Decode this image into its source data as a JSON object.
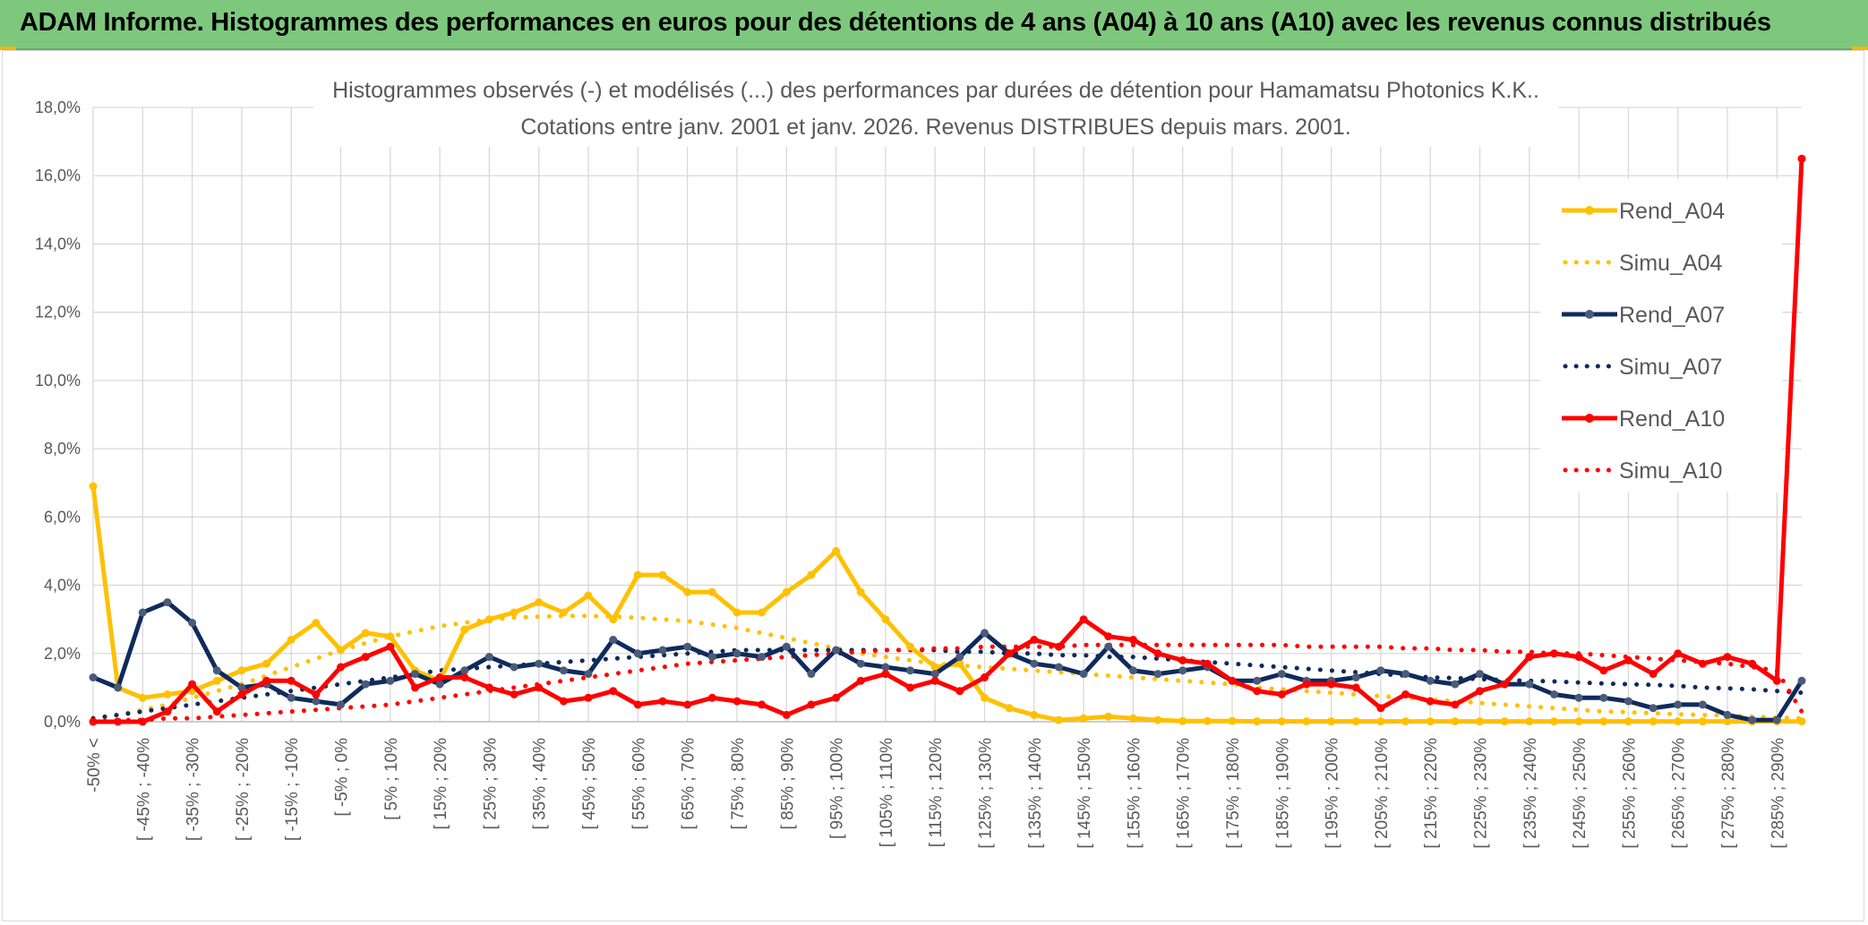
{
  "banner": {
    "title": "ADAM Informe. Histogrammes des performances en euros pour des détentions de 4 ans (A04) à 10 ans (A10) avec les revenus connus distribués"
  },
  "colors": {
    "banner_bg": "#7dc87d",
    "a04": "#ffc000",
    "a07": "#0f2a5c",
    "a07_marker": "#4a5a78",
    "a10": "#ff0000",
    "grid": "#d9d9d9",
    "text": "#595959"
  },
  "chart_data": {
    "type": "line",
    "title_line1": "Histogrammes observés (-) et modélisés (...) des performances par durées de détention pour Hamamatsu Photonics K.K..",
    "title_line2": "Cotations entre janv. 2001 et janv. 2026. Revenus DISTRIBUES depuis mars. 2001.",
    "y_ticks": [
      "0,0%",
      "2,0%",
      "4,0%",
      "6,0%",
      "8,0%",
      "10,0%",
      "12,0%",
      "14,0%",
      "16,0%",
      "18,0%"
    ],
    "ylim": [
      0,
      18
    ],
    "grid": true,
    "legend_position": "right",
    "x_tick_labels": [
      "-50% <",
      "[ -45% ; -40%",
      "[ -35% ; -30%",
      "[ -25% ; -20%",
      "[ -15% ; -10%",
      "[ -5% ; 0%",
      "[ 5% ; 10%",
      "[ 15% ; 20%",
      "[ 25% ; 30%",
      "[ 35% ; 40%",
      "[ 45% ; 50%",
      "[ 55% ; 60%",
      "[ 65% ; 70%",
      "[ 75% ; 80%",
      "[ 85% ; 90%",
      "[ 95% ; 100%",
      "[ 105% ; 110%",
      "[ 115% ; 120%",
      "[ 125% ; 130%",
      "[ 135% ; 140%",
      "[ 145% ; 150%",
      "[ 155% ; 160%",
      "[ 165% ; 170%",
      "[ 175% ; 180%",
      "[ 185% ; 190%",
      "[ 195% ; 200%",
      "[ 205% ; 210%",
      "[ 215% ; 220%",
      "[ 225% ; 230%",
      "[ 235% ; 240%",
      "[ 245% ; 250%",
      "[ 255% ; 260%",
      "[ 265% ; 270%",
      "[ 275% ; 280%",
      "[ 285% ; 290%"
    ],
    "categories_count": 70,
    "series": [
      {
        "name": "Rend_A04",
        "style": "solid",
        "color": "#ffc000",
        "values": [
          6.9,
          1.0,
          0.7,
          0.8,
          0.9,
          1.2,
          1.5,
          1.7,
          2.4,
          2.9,
          2.1,
          2.6,
          2.5,
          1.5,
          1.2,
          2.7,
          3.0,
          3.2,
          3.5,
          3.2,
          3.7,
          3.0,
          4.3,
          4.3,
          3.8,
          3.8,
          3.2,
          3.2,
          3.8,
          4.3,
          5.0,
          3.8,
          3.0,
          2.2,
          1.6,
          1.7,
          0.7,
          0.4,
          0.2,
          0.05,
          0.1,
          0.15,
          0.1,
          0.05,
          0.02,
          0.02,
          0.02,
          0.01,
          0.01,
          0.01,
          0.01,
          0.01,
          0.01,
          0.01,
          0.01,
          0.01,
          0.01,
          0.01,
          0.01,
          0.01,
          0.01,
          0.01,
          0.01,
          0.01,
          0.01,
          0.01,
          0.01,
          0.01,
          0.01,
          0.01
        ]
      },
      {
        "name": "Simu_A04",
        "style": "dotted",
        "color": "#ffc000",
        "values": [
          0.1,
          0.2,
          0.35,
          0.5,
          0.7,
          0.9,
          1.1,
          1.35,
          1.6,
          1.85,
          2.1,
          2.3,
          2.5,
          2.65,
          2.8,
          2.9,
          3.0,
          3.05,
          3.08,
          3.1,
          3.1,
          3.08,
          3.05,
          3.0,
          2.95,
          2.85,
          2.75,
          2.6,
          2.45,
          2.3,
          2.15,
          2.0,
          1.9,
          1.8,
          1.7,
          1.65,
          1.6,
          1.55,
          1.5,
          1.45,
          1.4,
          1.35,
          1.3,
          1.25,
          1.2,
          1.15,
          1.1,
          1.0,
          0.95,
          0.9,
          0.85,
          0.8,
          0.75,
          0.7,
          0.65,
          0.6,
          0.55,
          0.5,
          0.45,
          0.4,
          0.35,
          0.3,
          0.28,
          0.25,
          0.22,
          0.2,
          0.18,
          0.15,
          0.12,
          0.1
        ]
      },
      {
        "name": "Rend_A07",
        "style": "solid",
        "color": "#0f2a5c",
        "values": [
          1.3,
          1.0,
          3.2,
          3.5,
          2.9,
          1.5,
          1.0,
          1.1,
          0.7,
          0.6,
          0.5,
          1.1,
          1.2,
          1.4,
          1.1,
          1.5,
          1.9,
          1.6,
          1.7,
          1.5,
          1.4,
          2.4,
          2.0,
          2.1,
          2.2,
          1.9,
          2.0,
          1.9,
          2.2,
          1.4,
          2.1,
          1.7,
          1.6,
          1.5,
          1.4,
          1.9,
          2.6,
          2.0,
          1.7,
          1.6,
          1.4,
          2.2,
          1.5,
          1.4,
          1.5,
          1.6,
          1.2,
          1.2,
          1.4,
          1.2,
          1.2,
          1.3,
          1.5,
          1.4,
          1.2,
          1.1,
          1.4,
          1.1,
          1.1,
          0.8,
          0.7,
          0.7,
          0.6,
          0.4,
          0.5,
          0.5,
          0.2,
          0.05,
          0.05,
          1.2
        ]
      },
      {
        "name": "Simu_A07",
        "style": "dotted",
        "color": "#0f2a5c",
        "values": [
          0.1,
          0.2,
          0.3,
          0.4,
          0.5,
          0.6,
          0.7,
          0.8,
          0.9,
          1.0,
          1.1,
          1.2,
          1.3,
          1.4,
          1.5,
          1.55,
          1.6,
          1.65,
          1.7,
          1.75,
          1.8,
          1.85,
          1.9,
          1.95,
          2.0,
          2.05,
          2.1,
          2.1,
          2.1,
          2.1,
          2.1,
          2.1,
          2.1,
          2.1,
          2.1,
          2.05,
          2.05,
          2.0,
          2.0,
          1.95,
          1.95,
          1.9,
          1.9,
          1.85,
          1.8,
          1.75,
          1.7,
          1.65,
          1.6,
          1.55,
          1.5,
          1.45,
          1.4,
          1.35,
          1.3,
          1.28,
          1.25,
          1.22,
          1.2,
          1.18,
          1.15,
          1.12,
          1.1,
          1.08,
          1.05,
          1.0,
          0.98,
          0.95,
          0.9,
          0.85
        ]
      },
      {
        "name": "Rend_A10",
        "style": "solid",
        "color": "#ff0000",
        "values": [
          0.0,
          0.0,
          0.0,
          0.3,
          1.1,
          0.3,
          0.8,
          1.2,
          1.2,
          0.8,
          1.6,
          1.9,
          2.2,
          1.0,
          1.3,
          1.3,
          1.0,
          0.8,
          1.0,
          0.6,
          0.7,
          0.9,
          0.5,
          0.6,
          0.5,
          0.7,
          0.6,
          0.5,
          0.2,
          0.5,
          0.7,
          1.2,
          1.4,
          1.0,
          1.2,
          0.9,
          1.3,
          2.0,
          2.4,
          2.2,
          3.0,
          2.5,
          2.4,
          2.0,
          1.8,
          1.7,
          1.2,
          0.9,
          0.8,
          1.1,
          1.1,
          1.0,
          0.4,
          0.8,
          0.6,
          0.5,
          0.9,
          1.1,
          1.9,
          2.0,
          1.9,
          1.5,
          1.8,
          1.4,
          2.0,
          1.7,
          1.9,
          1.7,
          1.2,
          16.5
        ]
      },
      {
        "name": "Simu_A10",
        "style": "dotted",
        "color": "#ff0000",
        "values": [
          0.0,
          0.05,
          0.05,
          0.1,
          0.1,
          0.15,
          0.2,
          0.25,
          0.3,
          0.35,
          0.4,
          0.45,
          0.5,
          0.6,
          0.7,
          0.8,
          0.9,
          1.0,
          1.1,
          1.2,
          1.3,
          1.4,
          1.5,
          1.6,
          1.7,
          1.75,
          1.8,
          1.85,
          1.9,
          1.95,
          2.0,
          2.05,
          2.1,
          2.1,
          2.15,
          2.15,
          2.2,
          2.2,
          2.2,
          2.2,
          2.25,
          2.25,
          2.25,
          2.25,
          2.25,
          2.25,
          2.25,
          2.25,
          2.25,
          2.2,
          2.2,
          2.2,
          2.2,
          2.15,
          2.15,
          2.1,
          2.1,
          2.05,
          2.05,
          2.0,
          2.0,
          1.95,
          1.9,
          1.85,
          1.8,
          1.75,
          1.7,
          1.6,
          1.5,
          0.3
        ]
      }
    ]
  }
}
